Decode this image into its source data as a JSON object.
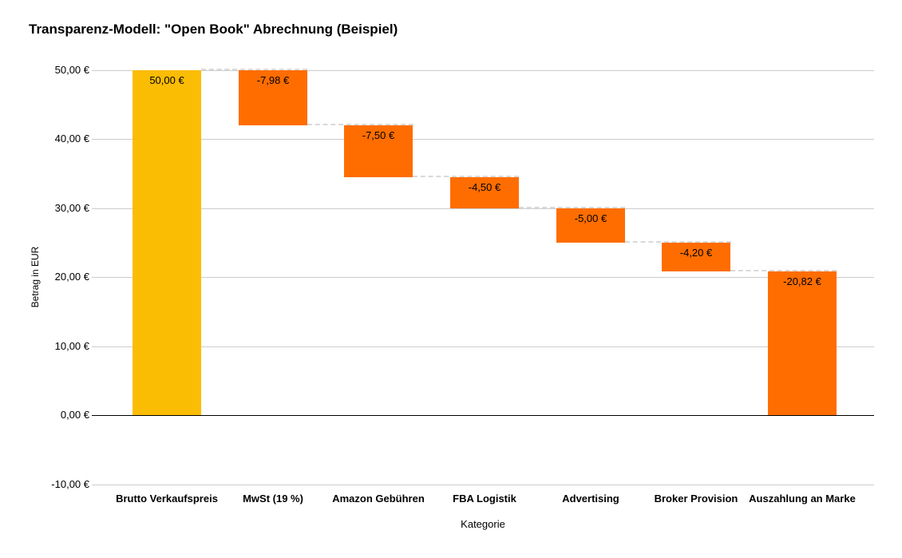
{
  "chart_data": {
    "type": "bar",
    "subtype": "waterfall",
    "title": "Transparenz-Modell: \"Open Book\" Abrechnung (Beispiel)",
    "xlabel": "Kategorie",
    "ylabel": "Betrag in EUR",
    "categories": [
      "Brutto Verkaufspreis",
      "MwSt (19 %)",
      "Amazon Gebühren",
      "FBA Logistik",
      "Advertising",
      "Broker Provision",
      "Auszahlung an Marke"
    ],
    "values": [
      50.0,
      -7.98,
      -7.5,
      -4.5,
      -5.0,
      -4.2,
      -20.82
    ],
    "value_labels": [
      "50,00 €",
      "-7,98 €",
      "-7,50 €",
      "-4,50 €",
      "-5,00 €",
      "-4,20 €",
      "-20,82 €"
    ],
    "running_totals": [
      50.0,
      42.02,
      34.52,
      30.02,
      25.02,
      20.82,
      0.0
    ],
    "ylim": [
      -10,
      50
    ],
    "ytick_step": 10,
    "ytick_labels": [
      "50,00 €",
      "40,00 €",
      "30,00 €",
      "20,00 €",
      "10,00 €",
      "0,00 €",
      "-10,00 €"
    ],
    "grid": true,
    "legend": "none",
    "connector_style": "dashed",
    "colors": {
      "increase": "#FBBC04",
      "decrease": "#FF6D01",
      "gridline": "#cccccc",
      "zero_line": "#000000",
      "connector": "#d9d9d9",
      "text": "#000000",
      "background": "#ffffff"
    }
  }
}
